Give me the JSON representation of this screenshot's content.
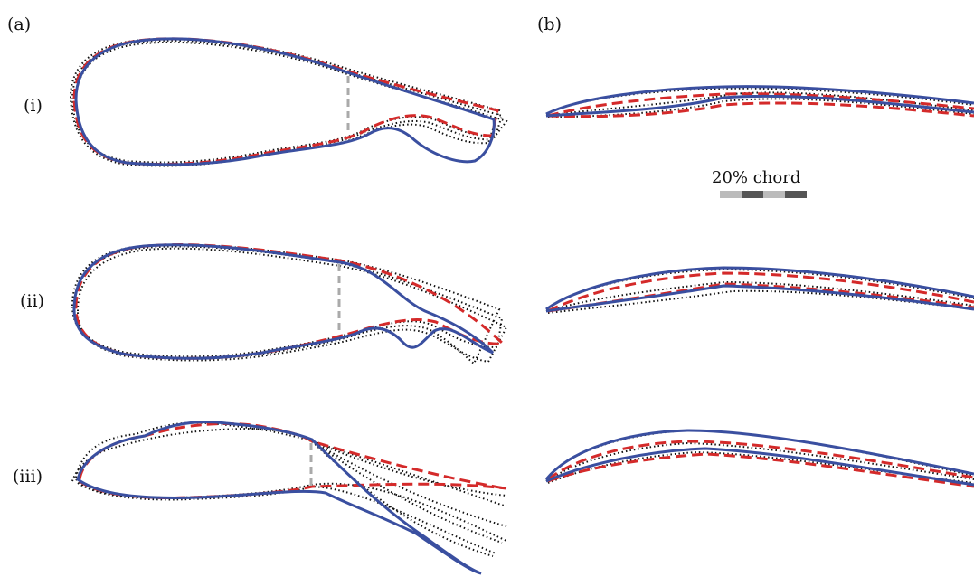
{
  "panels": {
    "a": "(a)",
    "b": "(b)"
  },
  "rows": [
    {
      "label": "(i)"
    },
    {
      "label": "(ii)"
    },
    {
      "label": "(iii)"
    }
  ],
  "scale_bar": {
    "label": "20% chord",
    "colors": [
      "#bbbbbb",
      "#555555",
      "#bbbbbb",
      "#555555"
    ]
  },
  "styles": {
    "solid_color": "#3a4fa0",
    "dashed_color": "#d42a2a",
    "dotted_color": "#111111",
    "marker_color": "#aaaaaa"
  }
}
